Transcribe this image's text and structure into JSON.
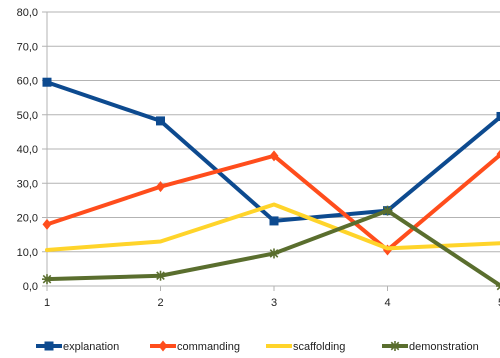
{
  "chart_data": {
    "type": "line",
    "x": [
      1,
      2,
      3,
      4,
      5
    ],
    "ylim": [
      0,
      80
    ],
    "ytick_labels": [
      "0,0",
      "10,0",
      "20,0",
      "30,0",
      "40,0",
      "50,0",
      "60,0",
      "70,0",
      "80,0"
    ],
    "xtick_labels": [
      "1",
      "2",
      "3",
      "4",
      "5"
    ],
    "grid": true,
    "legend": "bottom",
    "series": [
      {
        "name": "explanation",
        "color": "#0d4a8f",
        "marker": "square",
        "values": [
          59.5,
          48.2,
          19,
          22,
          49.5
        ]
      },
      {
        "name": "commanding",
        "color": "#ff4d1c",
        "marker": "diamond",
        "values": [
          18,
          29,
          38,
          10.5,
          38.5
        ]
      },
      {
        "name": "scaffolding",
        "color": "#ffd42a",
        "marker": "none",
        "values": [
          10.5,
          13,
          23.8,
          11,
          12.5
        ]
      },
      {
        "name": "demonstration",
        "color": "#5a6e2e",
        "marker": "asterisk",
        "values": [
          2,
          3,
          9.5,
          22,
          0
        ]
      }
    ]
  }
}
